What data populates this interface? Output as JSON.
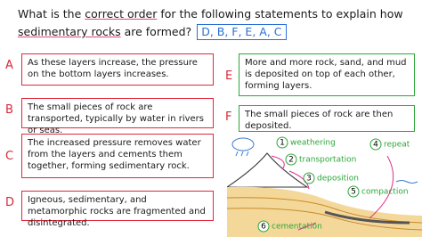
{
  "question": {
    "parts": [
      "What is the ",
      "correct order",
      " for the following statements to explain how ",
      "sedimentary rocks",
      " are formed?"
    ],
    "answer": "D, B, F, E, A, C"
  },
  "statements": [
    {
      "letter": "A",
      "text": "As these layers increase, the pressure on the bottom layers increases."
    },
    {
      "letter": "B",
      "text": "The small pieces of rock are transported, typically by water in rivers or seas."
    },
    {
      "letter": "C",
      "text": "The increased pressure removes water from the layers and cements them together, forming sedimentary rock."
    },
    {
      "letter": "D",
      "text": "Igneous, sedimentary, and metamorphic rocks are fragmented and disintegrated."
    },
    {
      "letter": "E",
      "text": "More and more rock, sand, and mud is deposited on top of each other, forming layers."
    },
    {
      "letter": "F",
      "text": "The small pieces of rock are then deposited."
    }
  ],
  "diagram": {
    "steps": [
      {
        "number": "1",
        "label": "weathering"
      },
      {
        "number": "2",
        "label": "transportation"
      },
      {
        "number": "3",
        "label": "deposition"
      },
      {
        "number": "4",
        "label": "repeat"
      },
      {
        "number": "5",
        "label": "compaction"
      },
      {
        "number": "6",
        "label": "cementation"
      }
    ]
  }
}
